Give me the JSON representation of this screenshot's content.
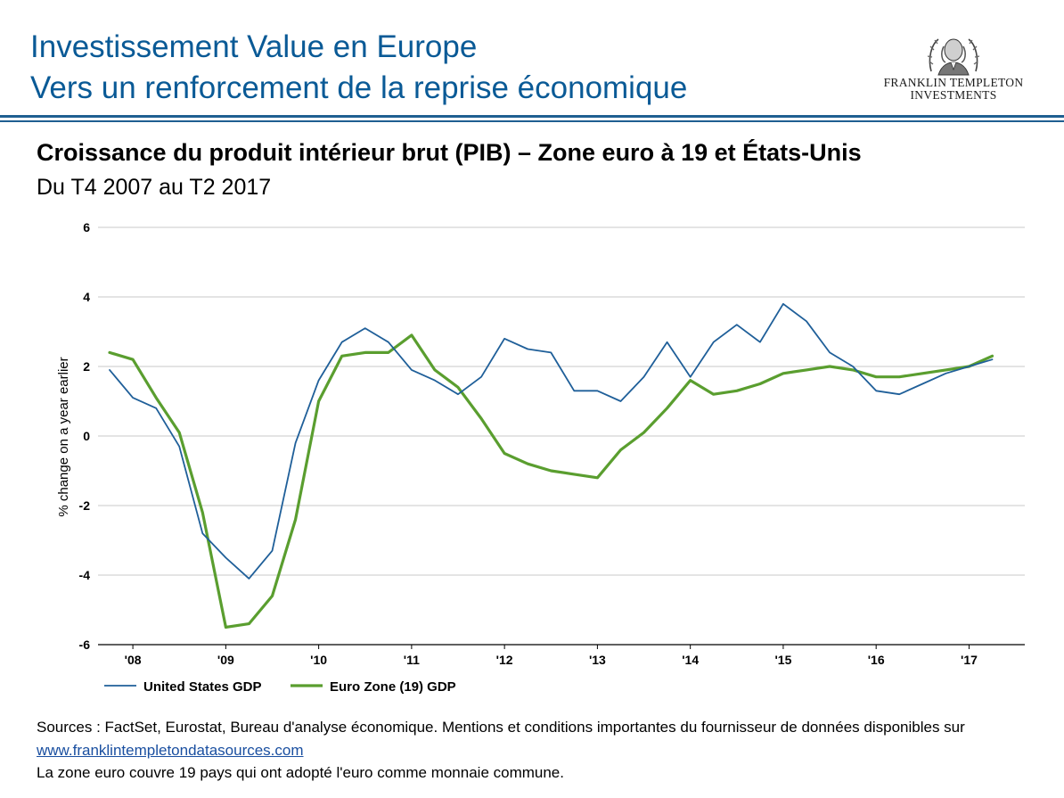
{
  "header": {
    "title_line1": "Investissement Value en Europe",
    "title_line2": "Vers un renforcement de la reprise économique"
  },
  "logo": {
    "line1": "FRANKLIN TEMPLETON",
    "line2": "INVESTMENTS",
    "icon": "benjamin-franklin-portrait-icon"
  },
  "chart_title": "Croissance du produit intérieur brut (PIB) – Zone euro à 19 et États-Unis",
  "chart_subtitle": "Du T4 2007 au T2 2017",
  "chart_data": {
    "type": "line",
    "ylabel": "% change on a year earlier",
    "ylim": [
      -6,
      6
    ],
    "yticks": [
      -6,
      -4,
      -2,
      0,
      2,
      4,
      6
    ],
    "y_tick_labels": [
      "-6",
      "-4",
      "-2",
      "0",
      "2",
      "4",
      "6"
    ],
    "x_tick_labels": [
      "'08",
      "'09",
      "'10",
      "'11",
      "'12",
      "'13",
      "'14",
      "'15",
      "'16",
      "'17"
    ],
    "x_tick_values": [
      2008,
      2009,
      2010,
      2011,
      2012,
      2013,
      2014,
      2015,
      2016,
      2017
    ],
    "xlim": [
      2007.625,
      2017.6
    ],
    "grid": true,
    "legend_position": "bottom-left",
    "series": [
      {
        "name": "United States GDP",
        "color": "#1f5f99",
        "x": [
          2007.75,
          2008.0,
          2008.25,
          2008.5,
          2008.75,
          2009.0,
          2009.25,
          2009.5,
          2009.75,
          2010.0,
          2010.25,
          2010.5,
          2010.75,
          2011.0,
          2011.25,
          2011.5,
          2011.75,
          2012.0,
          2012.25,
          2012.5,
          2012.75,
          2013.0,
          2013.25,
          2013.5,
          2013.75,
          2014.0,
          2014.25,
          2014.5,
          2014.75,
          2015.0,
          2015.25,
          2015.5,
          2015.75,
          2016.0,
          2016.25,
          2016.5,
          2016.75,
          2017.0,
          2017.25
        ],
        "values": [
          1.9,
          1.1,
          0.8,
          -0.3,
          -2.8,
          -3.5,
          -4.1,
          -3.3,
          -0.2,
          1.6,
          2.7,
          3.1,
          2.7,
          1.9,
          1.6,
          1.2,
          1.7,
          2.8,
          2.5,
          2.4,
          1.3,
          1.3,
          1.0,
          1.7,
          2.7,
          1.7,
          2.7,
          3.2,
          2.7,
          3.8,
          3.3,
          2.4,
          2.0,
          1.3,
          1.2,
          1.5,
          1.8,
          2.0,
          2.2
        ]
      },
      {
        "name": "Euro Zone (19) GDP",
        "color": "#5a9e2f",
        "x": [
          2007.75,
          2008.0,
          2008.25,
          2008.5,
          2008.75,
          2009.0,
          2009.25,
          2009.5,
          2009.75,
          2010.0,
          2010.25,
          2010.5,
          2010.75,
          2011.0,
          2011.25,
          2011.5,
          2011.75,
          2012.0,
          2012.25,
          2012.5,
          2012.75,
          2013.0,
          2013.25,
          2013.5,
          2013.75,
          2014.0,
          2014.25,
          2014.5,
          2014.75,
          2015.0,
          2015.25,
          2015.5,
          2015.75,
          2016.0,
          2016.25,
          2016.5,
          2016.75,
          2017.0,
          2017.25
        ],
        "values": [
          2.4,
          2.2,
          1.1,
          0.1,
          -2.2,
          -5.5,
          -5.4,
          -4.6,
          -2.4,
          1.0,
          2.3,
          2.4,
          2.4,
          2.9,
          1.9,
          1.4,
          0.5,
          -0.5,
          -0.8,
          -1.0,
          -1.1,
          -1.2,
          -0.4,
          0.1,
          0.8,
          1.6,
          1.2,
          1.3,
          1.5,
          1.8,
          1.9,
          2.0,
          1.9,
          1.7,
          1.7,
          1.8,
          1.9,
          2.0,
          2.3
        ]
      }
    ]
  },
  "sources": {
    "text": "Sources : FactSet, Eurostat, Bureau d'analyse économique. Mentions et conditions importantes du fournisseur de données disponibles sur",
    "link": "www.franklintempletondatasources.com"
  },
  "note": "La zone euro couvre 19 pays qui ont adopté l'euro comme monnaie commune."
}
